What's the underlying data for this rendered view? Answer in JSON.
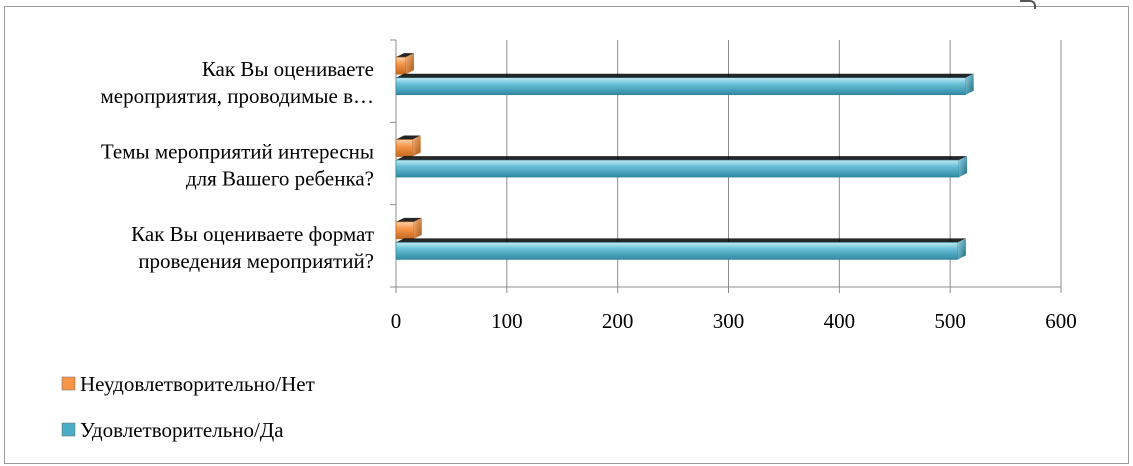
{
  "chart_data": {
    "type": "bar",
    "orientation": "horizontal",
    "style": "3d-cylinder-flat",
    "categories": [
      [
        "Как Вы оцениваете формат",
        "проведения мероприятий?"
      ],
      [
        "Темы мероприятий интересны",
        "для Вашего ребенка?"
      ],
      [
        "Как Вы оцениваете",
        "мероприятия, проводимые в…"
      ]
    ],
    "series": [
      {
        "name": "Неудовлетворительно/Нет",
        "color": "#f79646",
        "values": [
          16,
          15,
          9
        ]
      },
      {
        "name": "Удовлетворительно/Да",
        "color": "#4bacc6",
        "values": [
          507,
          508,
          514
        ]
      }
    ],
    "xlim": [
      0,
      600
    ],
    "xticks": [
      "0",
      "100",
      "200",
      "300",
      "400",
      "500",
      "600"
    ],
    "grid": true,
    "legend_position": "bottom-left",
    "title": "",
    "xlabel": "",
    "ylabel": ""
  }
}
